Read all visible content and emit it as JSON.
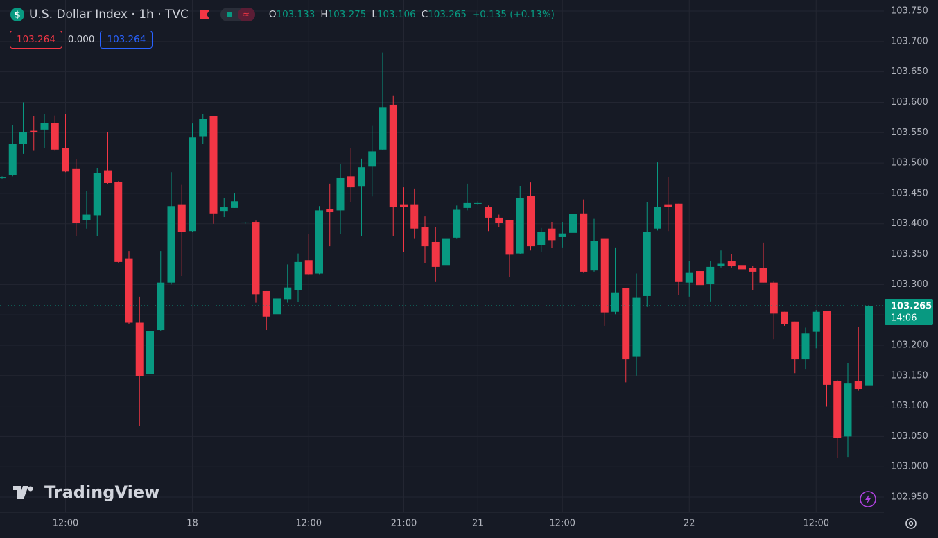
{
  "chart_data": {
    "type": "candlestick",
    "title": "U.S. Dollar Index · 1h · TVC",
    "change": "+0.135 (+0.13%)",
    "quote": {
      "bid": "103.264",
      "spread": "0.000",
      "ask": "103.264"
    },
    "countdown": "14:06",
    "watermark": "TradingView",
    "up_color": "#089981",
    "down_color": "#f23645",
    "grid": true,
    "ylim": [
      102.95,
      103.75
    ],
    "yticks": [
      {
        "value": 102.95,
        "label": "102.950"
      },
      {
        "value": 103.0,
        "label": "103.000"
      },
      {
        "value": 103.05,
        "label": "103.050"
      },
      {
        "value": 103.1,
        "label": "103.100"
      },
      {
        "value": 103.15,
        "label": "103.150"
      },
      {
        "value": 103.2,
        "label": "103.200"
      },
      {
        "value": 103.25,
        "label": "103.250"
      },
      {
        "value": 103.3,
        "label": "103.300"
      },
      {
        "value": 103.35,
        "label": "103.350"
      },
      {
        "value": 103.4,
        "label": "103.400"
      },
      {
        "value": 103.45,
        "label": "103.450"
      },
      {
        "value": 103.5,
        "label": "103.500"
      },
      {
        "value": 103.55,
        "label": "103.550"
      },
      {
        "value": 103.6,
        "label": "103.600"
      },
      {
        "value": 103.65,
        "label": "103.650"
      },
      {
        "value": 103.7,
        "label": "103.700"
      },
      {
        "value": 103.75,
        "label": "103.750"
      }
    ],
    "categories": [
      null,
      null,
      null,
      null,
      null,
      null,
      "12:00",
      null,
      null,
      null,
      null,
      null,
      null,
      null,
      null,
      null,
      null,
      null,
      "18",
      null,
      null,
      null,
      null,
      null,
      null,
      null,
      null,
      null,
      null,
      "12:00",
      null,
      null,
      null,
      null,
      null,
      null,
      null,
      null,
      "21:00",
      null,
      null,
      null,
      null,
      null,
      null,
      "21",
      null,
      null,
      null,
      null,
      null,
      null,
      null,
      "12:00",
      null,
      null,
      null,
      null,
      null,
      null,
      null,
      null,
      null,
      null,
      null,
      "22",
      null,
      null,
      null,
      null,
      null,
      null,
      null,
      null,
      null,
      null,
      null,
      "12:00",
      null,
      null,
      null,
      null,
      null
    ],
    "open": [
      103.476,
      103.48,
      103.532,
      103.553,
      103.555,
      103.566,
      103.525,
      103.49,
      103.406,
      103.414,
      103.488,
      103.469,
      103.343,
      103.237,
      103.153,
      103.225,
      103.303,
      103.432,
      103.388,
      103.544,
      103.577,
      103.42,
      103.426,
      103.401,
      103.403,
      103.289,
      103.251,
      103.276,
      103.291,
      103.34,
      103.318,
      103.424,
      103.422,
      103.478,
      103.461,
      103.494,
      103.522,
      103.596,
      103.432,
      103.432,
      103.395,
      103.37,
      103.332,
      103.377,
      103.426,
      103.433,
      103.427,
      103.41,
      103.406,
      103.351,
      103.446,
      103.365,
      103.392,
      103.378,
      103.385,
      103.417,
      103.323,
      103.375,
      103.255,
      103.294,
      103.181,
      103.281,
      103.392,
      103.432,
      103.433,
      103.303,
      103.322,
      103.301,
      103.331,
      103.338,
      103.332,
      103.327,
      103.327,
      103.303,
      103.255,
      103.239,
      103.177,
      103.222,
      103.257,
      103.141,
      103.05,
      103.141,
      103.133
    ],
    "high": [
      103.478,
      103.562,
      103.6,
      103.577,
      103.58,
      103.578,
      103.58,
      103.506,
      103.454,
      103.492,
      103.551,
      103.47,
      103.355,
      103.28,
      103.249,
      103.355,
      103.485,
      103.464,
      103.565,
      103.581,
      103.577,
      103.443,
      103.451,
      103.403,
      103.405,
      103.289,
      103.292,
      103.333,
      103.351,
      103.383,
      103.429,
      103.466,
      103.498,
      103.525,
      103.507,
      103.561,
      103.682,
      103.611,
      103.46,
      103.458,
      103.412,
      103.395,
      103.394,
      103.43,
      103.466,
      103.437,
      103.43,
      103.415,
      103.406,
      103.462,
      103.468,
      103.393,
      103.403,
      103.403,
      103.445,
      103.44,
      103.408,
      103.375,
      103.361,
      103.294,
      103.318,
      103.435,
      103.501,
      103.477,
      103.433,
      103.338,
      103.322,
      103.338,
      103.356,
      103.35,
      103.337,
      103.331,
      103.369,
      103.306,
      103.255,
      103.239,
      103.229,
      103.258,
      103.257,
      103.143,
      103.171,
      103.23,
      103.275
    ],
    "low": [
      103.474,
      103.478,
      103.515,
      103.52,
      103.525,
      103.52,
      103.485,
      103.38,
      103.392,
      103.38,
      103.466,
      103.336,
      103.235,
      103.067,
      103.061,
      103.224,
      103.3,
      103.314,
      103.387,
      103.532,
      103.4,
      103.411,
      103.426,
      103.4,
      103.27,
      103.225,
      103.226,
      103.27,
      103.271,
      103.316,
      103.317,
      103.363,
      103.383,
      103.435,
      103.38,
      103.445,
      103.521,
      103.38,
      103.353,
      103.375,
      103.335,
      103.304,
      103.323,
      103.375,
      103.422,
      103.431,
      103.388,
      103.394,
      103.312,
      103.35,
      103.356,
      103.354,
      103.36,
      103.361,
      103.382,
      103.319,
      103.321,
      103.232,
      103.251,
      103.139,
      103.15,
      103.263,
      103.389,
      103.388,
      103.283,
      103.28,
      103.288,
      103.272,
      103.328,
      103.328,
      103.322,
      103.291,
      103.303,
      103.21,
      103.232,
      103.154,
      103.161,
      103.195,
      103.099,
      103.014,
      103.016,
      103.125,
      103.106
    ],
    "close": [
      103.476,
      103.531,
      103.551,
      103.551,
      103.566,
      103.522,
      103.486,
      103.401,
      103.415,
      103.484,
      103.467,
      103.337,
      103.237,
      103.149,
      103.223,
      103.303,
      103.429,
      103.386,
      103.542,
      103.573,
      103.417,
      103.427,
      103.437,
      103.402,
      103.284,
      103.247,
      103.277,
      103.295,
      103.337,
      103.317,
      103.422,
      103.419,
      103.475,
      103.46,
      103.493,
      103.519,
      103.591,
      103.427,
      103.428,
      103.392,
      103.363,
      103.329,
      103.375,
      103.423,
      103.434,
      103.434,
      103.41,
      103.401,
      103.349,
      103.443,
      103.363,
      103.387,
      103.373,
      103.384,
      103.416,
      103.321,
      103.372,
      103.254,
      103.287,
      103.177,
      103.278,
      103.387,
      103.428,
      103.428,
      103.304,
      103.319,
      103.299,
      103.329,
      103.334,
      103.33,
      103.325,
      103.321,
      103.303,
      103.252,
      103.235,
      103.177,
      103.219,
      103.255,
      103.135,
      103.047,
      103.137,
      103.128,
      103.265
    ]
  }
}
